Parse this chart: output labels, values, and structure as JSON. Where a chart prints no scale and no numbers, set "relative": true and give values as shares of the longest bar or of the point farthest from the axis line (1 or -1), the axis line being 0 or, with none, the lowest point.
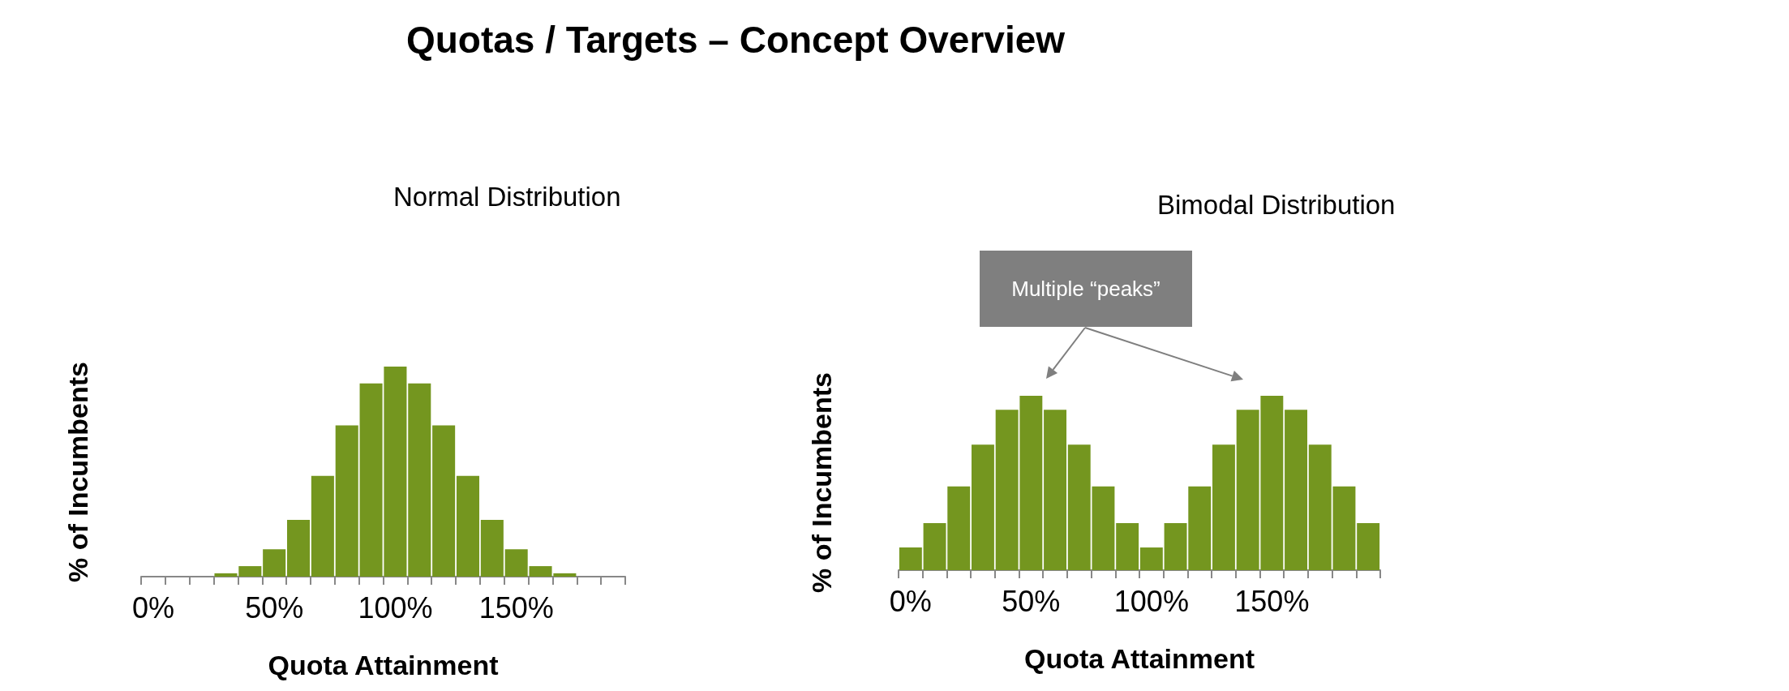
{
  "chart_data": [
    {
      "type": "bar",
      "title": "Quotas / Targets – Concept Overview",
      "subtitle": "Normal Distribution",
      "xlabel": "Quota Attainment",
      "ylabel": "% of Incumbents",
      "relative": true,
      "color": "#74961f",
      "categories": [
        "0%",
        null,
        null,
        null,
        null,
        "50%",
        null,
        null,
        null,
        null,
        "100%",
        null,
        null,
        null,
        null,
        "150%",
        null,
        null,
        null,
        null
      ],
      "values": [
        0,
        0,
        0,
        0.016,
        0.05,
        0.13,
        0.27,
        0.48,
        0.72,
        0.92,
        1,
        0.92,
        0.72,
        0.48,
        0.27,
        0.13,
        0.05,
        0.016,
        0,
        0
      ]
    },
    {
      "type": "bar",
      "subtitle": "Bimodal Distribution",
      "xlabel": "Quota Attainment",
      "ylabel": "% of Incumbents",
      "relative": true,
      "color": "#74961f",
      "categories": [
        "0%",
        null,
        null,
        null,
        null,
        "50%",
        null,
        null,
        null,
        null,
        "100%",
        null,
        null,
        null,
        null,
        "150%",
        null,
        null,
        null,
        null
      ],
      "values": [
        0.13,
        0.27,
        0.48,
        0.72,
        0.92,
        1,
        0.92,
        0.72,
        0.48,
        0.27,
        0.13,
        0.27,
        0.48,
        0.72,
        0.92,
        1,
        0.92,
        0.72,
        0.48,
        0.27
      ],
      "annotations": [
        "Multiple “peaks”"
      ]
    }
  ]
}
